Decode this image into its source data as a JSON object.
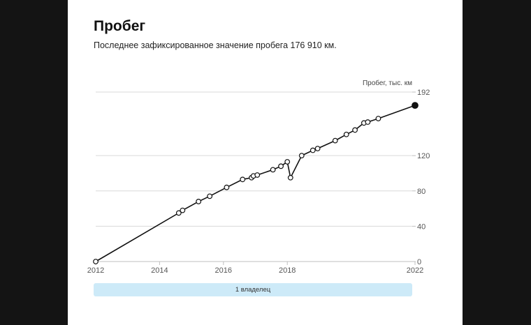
{
  "header": {
    "title": "Пробег",
    "subtitle": "Последнее зафиксированное значение пробега 176 910 км."
  },
  "owners": {
    "label": "1 владелец"
  },
  "colors": {
    "line": "#111111",
    "point_fill": "#ffffff",
    "last_point_fill": "#111111",
    "grid": "#d9d9d9",
    "owner_bar": "#cdeaf8"
  },
  "chart_data": {
    "type": "line",
    "title": "Пробег",
    "ylabel": "Пробег, тыс. км",
    "xlabel": "",
    "xlim": [
      2012,
      2022
    ],
    "ylim": [
      0,
      192
    ],
    "x_ticks": [
      "2012",
      "2014",
      "2016",
      "2018",
      "2022"
    ],
    "x_tick_values": [
      2012,
      2014,
      2016,
      2018,
      2022
    ],
    "y_ticks": [
      "0",
      "40",
      "80",
      "120",
      "192"
    ],
    "y_tick_values": [
      0,
      40,
      80,
      120,
      192
    ],
    "grid": true,
    "series": [
      {
        "name": "",
        "points": [
          {
            "x": 2012.0,
            "y": 0
          },
          {
            "x": 2014.6,
            "y": 55
          },
          {
            "x": 2014.72,
            "y": 58
          },
          {
            "x": 2015.22,
            "y": 68
          },
          {
            "x": 2015.57,
            "y": 74
          },
          {
            "x": 2016.1,
            "y": 84
          },
          {
            "x": 2016.6,
            "y": 93
          },
          {
            "x": 2016.88,
            "y": 95
          },
          {
            "x": 2016.94,
            "y": 97
          },
          {
            "x": 2017.06,
            "y": 98
          },
          {
            "x": 2017.55,
            "y": 104
          },
          {
            "x": 2017.8,
            "y": 108
          },
          {
            "x": 2018.0,
            "y": 113
          },
          {
            "x": 2018.1,
            "y": 95
          },
          {
            "x": 2018.45,
            "y": 120
          },
          {
            "x": 2018.8,
            "y": 126
          },
          {
            "x": 2018.95,
            "y": 128
          },
          {
            "x": 2019.5,
            "y": 137
          },
          {
            "x": 2019.85,
            "y": 144
          },
          {
            "x": 2020.12,
            "y": 149
          },
          {
            "x": 2020.4,
            "y": 157
          },
          {
            "x": 2020.52,
            "y": 158
          },
          {
            "x": 2020.85,
            "y": 162
          },
          {
            "x": 2022.0,
            "y": 176.91
          }
        ]
      }
    ]
  }
}
